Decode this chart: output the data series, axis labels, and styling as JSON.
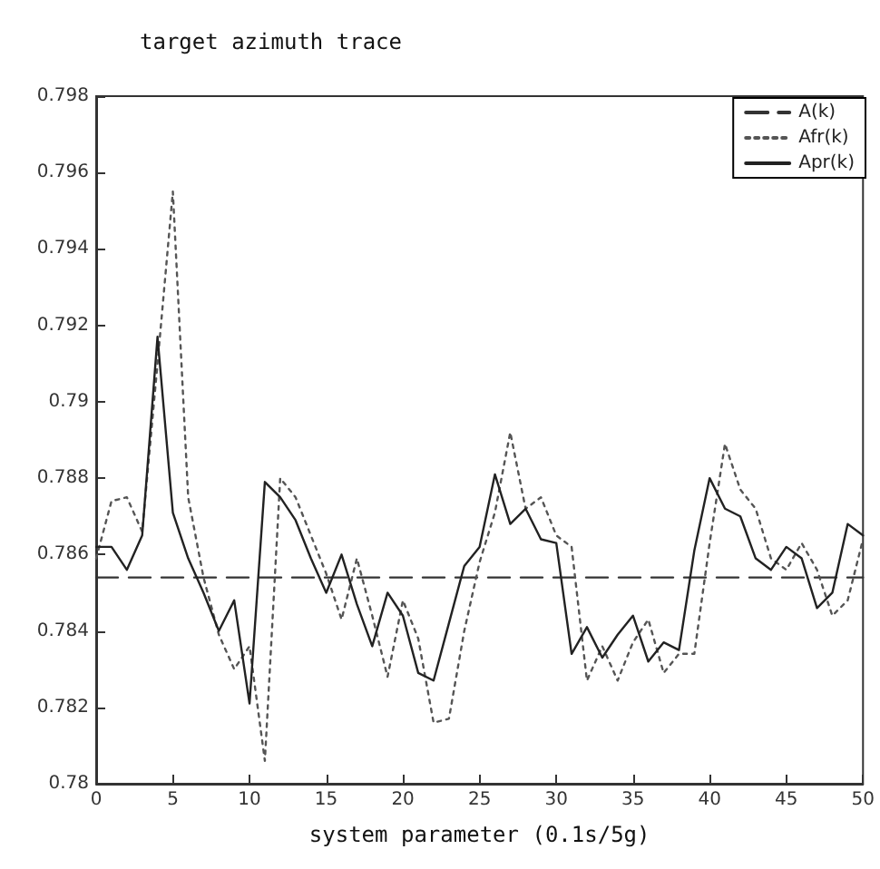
{
  "chart_data": {
    "type": "line",
    "title": "target azimuth trace",
    "xlabel": "system parameter (0.1s/5g)",
    "x": [
      0,
      1,
      2,
      3,
      4,
      5,
      6,
      7,
      8,
      9,
      10,
      11,
      12,
      13,
      14,
      15,
      16,
      17,
      18,
      19,
      20,
      21,
      22,
      23,
      24,
      25,
      26,
      27,
      28,
      29,
      30,
      31,
      32,
      33,
      34,
      35,
      36,
      37,
      38,
      39,
      40,
      41,
      42,
      43,
      44,
      45,
      46,
      47,
      48,
      49,
      50
    ],
    "series": [
      {
        "name": "A(k)",
        "color": "#333333",
        "line_style": "dashed",
        "x": [
          0,
          50
        ],
        "values": [
          0.7854,
          0.7854
        ]
      },
      {
        "name": "Afr(k)",
        "color": "#555555",
        "line_style": "dotted",
        "values": [
          0.7859,
          0.7874,
          0.7875,
          0.7866,
          0.791,
          0.7955,
          0.7875,
          0.7854,
          0.7839,
          0.783,
          0.7836,
          0.7806,
          0.788,
          0.7875,
          0.7865,
          0.7855,
          0.7843,
          0.7859,
          0.7844,
          0.7828,
          0.7848,
          0.7838,
          0.7816,
          0.7817,
          0.784,
          0.7858,
          0.7871,
          0.7892,
          0.7872,
          0.7875,
          0.7865,
          0.7862,
          0.7827,
          0.7836,
          0.7827,
          0.7837,
          0.7843,
          0.7829,
          0.7834,
          0.7834,
          0.7863,
          0.7889,
          0.7877,
          0.7872,
          0.7859,
          0.7856,
          0.7863,
          0.7856,
          0.7844,
          0.7848,
          0.7864
        ]
      },
      {
        "name": "Apr(k)",
        "color": "#222222",
        "line_style": "solid",
        "values": [
          0.7862,
          0.7862,
          0.7856,
          0.7865,
          0.7917,
          0.7871,
          0.7859,
          0.785,
          0.784,
          0.7848,
          0.7821,
          0.7879,
          0.7875,
          0.7869,
          0.7859,
          0.785,
          0.786,
          0.7847,
          0.7836,
          0.785,
          0.7844,
          0.7829,
          0.7827,
          0.7842,
          0.7857,
          0.7862,
          0.7881,
          0.7868,
          0.7872,
          0.7864,
          0.7863,
          0.7834,
          0.7841,
          0.7833,
          0.7839,
          0.7844,
          0.7832,
          0.7837,
          0.7835,
          0.7861,
          0.788,
          0.7872,
          0.787,
          0.7859,
          0.7856,
          0.7862,
          0.7859,
          0.7846,
          0.785,
          0.7868,
          0.7865
        ]
      }
    ],
    "xlim": [
      0,
      50
    ],
    "xticks": [
      0,
      5,
      10,
      15,
      20,
      25,
      30,
      35,
      40,
      45,
      50
    ],
    "ylim": [
      0.78,
      0.798
    ],
    "yticks": [
      0.78,
      0.782,
      0.784,
      0.786,
      0.788,
      0.79,
      0.792,
      0.794,
      0.796,
      0.798
    ],
    "grid": false,
    "legend": "top right",
    "marker": "none"
  }
}
